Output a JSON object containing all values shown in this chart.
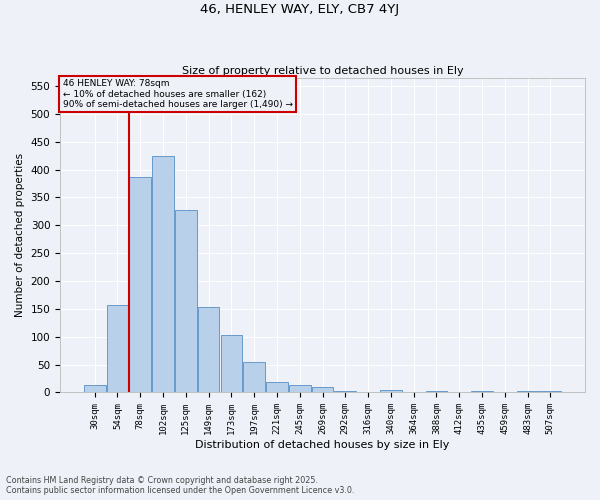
{
  "title": "46, HENLEY WAY, ELY, CB7 4YJ",
  "subtitle": "Size of property relative to detached houses in Ely",
  "xlabel": "Distribution of detached houses by size in Ely",
  "ylabel": "Number of detached properties",
  "categories": [
    "30sqm",
    "54sqm",
    "78sqm",
    "102sqm",
    "125sqm",
    "149sqm",
    "173sqm",
    "197sqm",
    "221sqm",
    "245sqm",
    "269sqm",
    "292sqm",
    "316sqm",
    "340sqm",
    "364sqm",
    "388sqm",
    "412sqm",
    "435sqm",
    "459sqm",
    "483sqm",
    "507sqm"
  ],
  "values": [
    13,
    157,
    387,
    425,
    328,
    153,
    103,
    55,
    19,
    14,
    10,
    3,
    0,
    5,
    0,
    3,
    0,
    2,
    0,
    3,
    3
  ],
  "bar_color": "#b8d0ea",
  "bar_edge_color": "#6699cc",
  "vline_index": 2,
  "vline_color": "#cc0000",
  "annotation_line1": "46 HENLEY WAY: 78sqm",
  "annotation_line2": "← 10% of detached houses are smaller (162)",
  "annotation_line3": "90% of semi-detached houses are larger (1,490) →",
  "annotation_box_color": "#cc0000",
  "ylim": [
    0,
    565
  ],
  "yticks": [
    0,
    50,
    100,
    150,
    200,
    250,
    300,
    350,
    400,
    450,
    500,
    550
  ],
  "bg_color": "#eef2f8",
  "grid_color": "#ffffff",
  "footer1": "Contains HM Land Registry data © Crown copyright and database right 2025.",
  "footer2": "Contains public sector information licensed under the Open Government Licence v3.0."
}
